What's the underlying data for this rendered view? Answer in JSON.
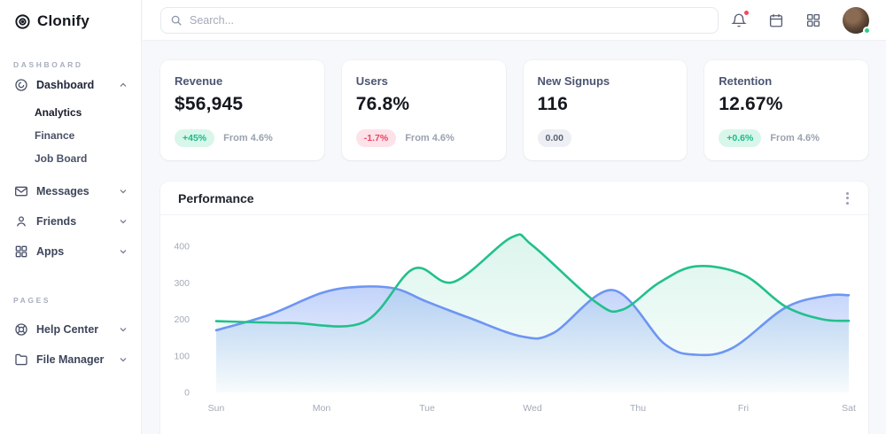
{
  "brand": {
    "name": "Clonify"
  },
  "sidebar": {
    "section1_label": "DASHBOARD",
    "section2_label": "PAGES",
    "dashboard_label": "Dashboard",
    "sub_items": [
      {
        "label": "Analytics",
        "active": true
      },
      {
        "label": "Finance",
        "active": false
      },
      {
        "label": "Job Board",
        "active": false
      }
    ],
    "messages_label": "Messages",
    "friends_label": "Friends",
    "apps_label": "Apps",
    "help_label": "Help Center",
    "files_label": "File Manager"
  },
  "topbar": {
    "search_placeholder": "Search..."
  },
  "cards": [
    {
      "title": "Revenue",
      "value": "$56,945",
      "badge": "+45%",
      "badge_type": "up",
      "note": "From 4.6%"
    },
    {
      "title": "Users",
      "value": "76.8%",
      "badge": "-1.7%",
      "badge_type": "down",
      "note": "From 4.6%"
    },
    {
      "title": "New Signups",
      "value": "116",
      "badge": "0.00",
      "badge_type": "neutral",
      "note": ""
    },
    {
      "title": "Retention",
      "value": "12.67%",
      "badge": "+0.6%",
      "badge_type": "up",
      "note": "From 4.6%"
    }
  ],
  "panel": {
    "title": "Performance"
  },
  "colors": {
    "green_accent": "#22c08d",
    "blue_accent": "#6d95f3",
    "badge_up_bg": "#d9f6ea",
    "badge_up_text": "#17bd88",
    "badge_down_bg": "#fde3e9",
    "badge_down_text": "#ee4360",
    "notification_dot": "#f4485d",
    "presence_dot": "#2ece89"
  },
  "chart_data": {
    "type": "area",
    "title": "Performance",
    "x_labels": [
      "Sun",
      "Mon",
      "Tue",
      "Wed",
      "Thu",
      "Fri",
      "Sat"
    ],
    "y_ticks": [
      0,
      100,
      200,
      300,
      400
    ],
    "ylim": [
      0,
      440
    ],
    "grid": false,
    "legend": false,
    "series": [
      {
        "name": "series-green",
        "color": "#22c08d",
        "area_opacity": 0.16,
        "points": [
          [
            0,
            195
          ],
          [
            0.7,
            190
          ],
          [
            1.4,
            192
          ],
          [
            1.87,
            338
          ],
          [
            2.25,
            302
          ],
          [
            2.8,
            424
          ],
          [
            3.0,
            402
          ],
          [
            3.6,
            247
          ],
          [
            3.85,
            226
          ],
          [
            4.2,
            300
          ],
          [
            4.55,
            345
          ],
          [
            5.0,
            322
          ],
          [
            5.4,
            235
          ],
          [
            5.75,
            200
          ],
          [
            6,
            196
          ]
        ]
      },
      {
        "name": "series-blue",
        "color": "#6d95f3",
        "area_opacity": 0.42,
        "points": [
          [
            0,
            170
          ],
          [
            0.5,
            212
          ],
          [
            1,
            272
          ],
          [
            1.35,
            289
          ],
          [
            1.7,
            284
          ],
          [
            2.0,
            248
          ],
          [
            2.4,
            204
          ],
          [
            2.9,
            153
          ],
          [
            3.2,
            163
          ],
          [
            3.76,
            280
          ],
          [
            4.25,
            133
          ],
          [
            4.55,
            103
          ],
          [
            4.9,
            122
          ],
          [
            5.4,
            232
          ],
          [
            5.8,
            265
          ],
          [
            6,
            266
          ]
        ]
      }
    ]
  }
}
